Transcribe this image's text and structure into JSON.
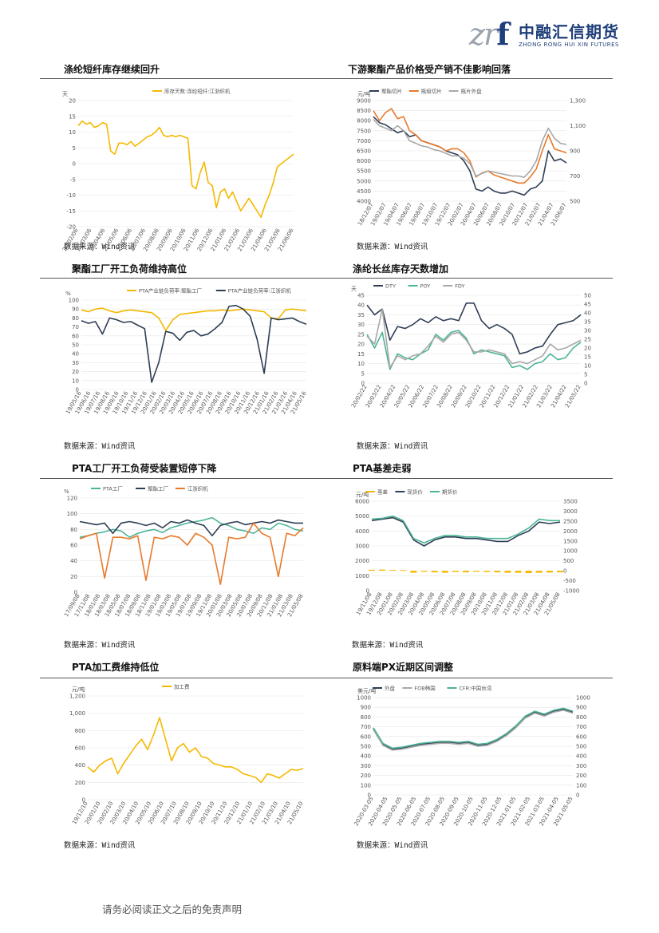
{
  "header": {
    "logo_mark": "zrf",
    "logo_cn": "中融汇信期货",
    "logo_en": "ZHONG RONG HUI XIN FUTURES"
  },
  "footer": "请务必阅读正文之后的免责声明",
  "source_label": "数据来源：Wind资讯",
  "colors": {
    "yellow": "#f5b800",
    "navy": "#2e3e55",
    "orange": "#e8792b",
    "gray": "#a8a8a8",
    "teal": "#4db397"
  },
  "sections": [
    {
      "title": "涤纶短纤库存继续回升",
      "source": "数据来源：Wind资讯"
    },
    {
      "title": "下游聚酯产品价格受产销不佳影响回落",
      "source": "数据来源：Wind资讯"
    },
    {
      "title": "聚酯工厂开工负荷维持高位",
      "source": "数据来源：Wind资讯"
    },
    {
      "title": "涤纶长丝库存天数增加",
      "source": "数据来源：Wind资讯"
    },
    {
      "title": "PTA工厂开工负荷受装置短停下降",
      "source": "数据来源：Wind资讯"
    },
    {
      "title": "PTA基差走弱",
      "source": "数据来源：Wind资讯"
    },
    {
      "title": "PTA加工费维持低位",
      "source": "数据来源：Wind资讯"
    },
    {
      "title": "原料端PX近期区间调整",
      "source": "数据来源：Wind资讯"
    }
  ],
  "chart_data": [
    {
      "type": "line",
      "unit": "天",
      "ylim": [
        -20,
        20
      ],
      "yticks": [
        20,
        15,
        10,
        5,
        0,
        -5,
        -10,
        -15,
        -20
      ],
      "xticks": [
        "20/02/06",
        "20/03/06",
        "20/04/06",
        "20/05/06",
        "20/06/06",
        "20/07/06",
        "20/08/06",
        "20/09/06",
        "20/10/06",
        "20/11/06",
        "20/12/06",
        "21/01/06",
        "21/02/06",
        "21/03/06",
        "21/04/06",
        "21/05/06",
        "21/06/06"
      ],
      "series": [
        {
          "name": "库存天数:涤纶短纤:江浙织机",
          "color": "#f5b800",
          "values": [
            12,
            13.5,
            12.5,
            13,
            11.5,
            12,
            13,
            12.5,
            4,
            3,
            6.5,
            6.5,
            6,
            7,
            5.5,
            6.5,
            7.5,
            8.5,
            9,
            10,
            11.5,
            9,
            8.5,
            9,
            8.5,
            9,
            8.5,
            8,
            -7,
            -8,
            -3,
            0.5,
            -6,
            -7,
            -14,
            -9,
            -8,
            -11,
            -9,
            -12,
            -15,
            -13,
            -11,
            -13,
            -15,
            -17,
            -13,
            -10,
            -6,
            -1,
            0,
            1,
            2,
            3
          ]
        }
      ]
    },
    {
      "type": "line",
      "unit": "元/吨",
      "ylim": [
        4000,
        9000
      ],
      "yticks": [
        9000,
        8500,
        8000,
        7500,
        7000,
        6500,
        6000,
        5500,
        5000,
        4500,
        4000
      ],
      "y2lim": [
        500,
        1300
      ],
      "y2ticks": [
        "1,300",
        "1,100",
        "900",
        "700",
        "500"
      ],
      "xticks": [
        "18/12/07",
        "19/02/07",
        "19/04/07",
        "19/06/07",
        "19/08/07",
        "19/10/07",
        "19/12/07",
        "20/02/07",
        "20/04/07",
        "20/06/07",
        "20/08/07",
        "20/10/07",
        "20/12/07",
        "21/02/07",
        "21/04/07",
        "21/06/07"
      ],
      "series": [
        {
          "name": "聚酯切片",
          "color": "#2e3e55",
          "values": [
            8200,
            7900,
            7800,
            7600,
            7400,
            7500,
            7200,
            7300,
            7000,
            6900,
            6800,
            6700,
            6500,
            6400,
            6300,
            6000,
            5500,
            4600,
            4500,
            4700,
            4500,
            4400,
            4400,
            4500,
            4400,
            4300,
            4600,
            4700,
            5000,
            6500,
            6000,
            6100,
            5900
          ]
        },
        {
          "name": "瓶级切片",
          "color": "#e8792b",
          "values": [
            8500,
            8000,
            8400,
            8600,
            8100,
            8200,
            7500,
            7300,
            7000,
            6900,
            6800,
            6700,
            6500,
            6600,
            6600,
            6400,
            6000,
            5200,
            5400,
            5500,
            5300,
            5200,
            5100,
            5000,
            4900,
            4900,
            5200,
            5600,
            6500,
            7300,
            6600,
            6500,
            6400
          ]
        },
        {
          "name": "瓶片外盘",
          "color": "#a8a8a8",
          "values": [
            1150,
            1100,
            1080,
            1060,
            1100,
            1060,
            980,
            960,
            940,
            930,
            910,
            900,
            880,
            860,
            860,
            840,
            800,
            700,
            720,
            740,
            730,
            720,
            710,
            700,
            700,
            690,
            740,
            820,
            980,
            1080,
            1000,
            960,
            950
          ],
          "axis": "y2"
        }
      ]
    },
    {
      "type": "line",
      "unit": "%",
      "ylim": [
        0,
        100
      ],
      "yticks": [
        100,
        90,
        80,
        70,
        60,
        50,
        40,
        30,
        20,
        10,
        0
      ],
      "xticks": [
        "19/05/16",
        "19/06/16",
        "19/07/16",
        "19/08/16",
        "19/09/16",
        "19/10/16",
        "19/11/16",
        "19/12/16",
        "20/01/16",
        "20/02/16",
        "20/03/16",
        "20/04/16",
        "20/05/16",
        "20/06/16",
        "20/07/16",
        "20/08/16",
        "20/09/16",
        "20/10/16",
        "20/11/16",
        "20/12/16",
        "21/01/16",
        "21/02/16",
        "21/03/16",
        "21/04/16",
        "21/05/16"
      ],
      "series": [
        {
          "name": "PTA产业链负荷率:聚酯工厂",
          "color": "#f5b800",
          "values": [
            89,
            87,
            90,
            91,
            88,
            86,
            88,
            89,
            88,
            87,
            86,
            80,
            66,
            78,
            84,
            85,
            86,
            87,
            88,
            88,
            89,
            88,
            89,
            90,
            89,
            88,
            87,
            80,
            79,
            89,
            90,
            89,
            88
          ]
        },
        {
          "name": "PTA产业链负荷率:江浙织机",
          "color": "#2e3e55",
          "values": [
            77,
            74,
            76,
            62,
            80,
            78,
            75,
            76,
            72,
            68,
            8,
            30,
            65,
            63,
            55,
            64,
            66,
            60,
            62,
            68,
            75,
            93,
            94,
            90,
            82,
            56,
            18,
            80,
            78,
            79,
            80,
            76,
            73
          ]
        }
      ]
    },
    {
      "type": "line",
      "unit": "天",
      "ylim": [
        0,
        45
      ],
      "yticks": [
        45,
        40,
        35,
        30,
        25,
        20,
        15,
        10,
        5,
        0
      ],
      "y2lim": [
        0,
        50
      ],
      "y2ticks": [
        50,
        45,
        40,
        35,
        30,
        25,
        20,
        15,
        10,
        5,
        0
      ],
      "xticks": [
        "20/02/22",
        "20/03/22",
        "20/04/22",
        "20/05/22",
        "20/06/22",
        "20/07/22",
        "20/08/22",
        "20/09/22",
        "20/10/22",
        "20/11/22",
        "20/12/22",
        "21/01/22",
        "21/02/22",
        "21/03/22",
        "21/04/22",
        "21/05/22"
      ],
      "series": [
        {
          "name": "DTY",
          "color": "#2e3e55",
          "values": [
            40,
            35,
            38,
            22,
            29,
            28,
            30,
            33,
            31,
            34,
            32,
            33,
            32,
            41,
            41,
            32,
            28,
            30,
            28,
            25,
            15,
            16,
            18,
            19,
            25,
            30,
            31,
            32,
            35
          ]
        },
        {
          "name": "POY",
          "color": "#4db397",
          "values": [
            25,
            18,
            26,
            7,
            15,
            13,
            12,
            15,
            17,
            25,
            22,
            26,
            27,
            23,
            15,
            17,
            16,
            15,
            14,
            8,
            9,
            7,
            10,
            11,
            15,
            12,
            13,
            18,
            21
          ]
        },
        {
          "name": "FDY",
          "color": "#a8a8a8",
          "values": [
            24,
            20,
            38,
            8,
            14,
            12,
            14,
            15,
            19,
            24,
            21,
            25,
            26,
            22,
            16,
            16,
            17,
            16,
            15,
            10,
            11,
            10,
            12,
            14,
            20,
            17,
            18,
            20,
            22
          ]
        }
      ]
    },
    {
      "type": "line",
      "unit": "%",
      "ylim": [
        0,
        120
      ],
      "yticks": [
        120,
        100,
        80,
        60,
        40,
        20,
        0
      ],
      "xticks": [
        "17/09/08",
        "17/11/08",
        "18/01/08",
        "18/03/08",
        "18/05/08",
        "18/07/08",
        "18/09/08",
        "18/11/08",
        "19/01/08",
        "19/03/08",
        "19/05/08",
        "19/07/08",
        "19/09/08",
        "19/11/08",
        "20/01/08",
        "20/03/08",
        "20/05/08",
        "20/07/08",
        "20/09/08",
        "20/11/08",
        "21/01/08",
        "21/03/08",
        "21/05/08"
      ],
      "series": [
        {
          "name": "PTA工厂",
          "color": "#4db397",
          "values": [
            70,
            72,
            75,
            77,
            80,
            78,
            70,
            75,
            78,
            80,
            76,
            82,
            85,
            88,
            90,
            92,
            95,
            88,
            85,
            80,
            78,
            75,
            82,
            80,
            88,
            85,
            80,
            78
          ]
        },
        {
          "name": "聚酯工厂",
          "color": "#2e3e55",
          "values": [
            90,
            88,
            86,
            88,
            75,
            88,
            90,
            88,
            85,
            88,
            82,
            90,
            88,
            92,
            88,
            85,
            72,
            85,
            88,
            90,
            86,
            88,
            90,
            88,
            92,
            90,
            88,
            88
          ]
        },
        {
          "name": "江浙织机",
          "color": "#e8792b",
          "values": [
            68,
            72,
            75,
            18,
            70,
            70,
            68,
            72,
            15,
            70,
            68,
            72,
            70,
            60,
            75,
            70,
            60,
            10,
            70,
            68,
            70,
            88,
            75,
            70,
            20,
            75,
            72,
            82
          ]
        }
      ]
    },
    {
      "type": "line",
      "unit": "元/吨",
      "ylim": [
        0,
        6000
      ],
      "yticks": [
        6000,
        5000,
        4000,
        3000,
        2000,
        1000,
        0
      ],
      "y2lim": [
        -1000,
        3500
      ],
      "y2ticks": [
        3500,
        3000,
        2500,
        2000,
        1500,
        1000,
        500,
        0,
        -500,
        -1000
      ],
      "xticks": [
        "19/11/08",
        "19/12/08",
        "20/01/08",
        "20/02/08",
        "20/03/08",
        "20/04/08",
        "20/05/08",
        "20/06/08",
        "20/07/08",
        "20/08/08",
        "20/09/08",
        "20/10/08",
        "20/11/08",
        "20/12/08",
        "21/01/08",
        "21/02/08",
        "21/03/08",
        "21/04/08",
        "21/05/08"
      ],
      "series": [
        {
          "name": "基差",
          "color": "#f5b800",
          "values": [
            50,
            60,
            40,
            30,
            -100,
            -50,
            -80,
            -100,
            -60,
            -80,
            -50,
            -60,
            -80,
            -100,
            -100,
            -120,
            -100,
            -90,
            -80
          ],
          "axis": "y2"
        },
        {
          "name": "现货价",
          "color": "#2e3e55",
          "values": [
            4700,
            4800,
            4900,
            4600,
            3400,
            3000,
            3400,
            3600,
            3600,
            3500,
            3500,
            3400,
            3300,
            3300,
            3700,
            4000,
            4600,
            4500,
            4600
          ]
        },
        {
          "name": "期货价",
          "color": "#4db397",
          "values": [
            4800,
            4850,
            5000,
            4700,
            3500,
            3200,
            3500,
            3700,
            3700,
            3600,
            3600,
            3500,
            3500,
            3500,
            3800,
            4200,
            4800,
            4700,
            4700
          ]
        }
      ]
    },
    {
      "type": "line",
      "unit": "元/吨",
      "ylim": [
        0,
        1200
      ],
      "yticks": [
        "1,200",
        "1,000",
        "800",
        "600",
        "400",
        "200",
        "0"
      ],
      "xticks": [
        "19/12/10",
        "20/01/10",
        "20/02/10",
        "20/03/10",
        "20/04/10",
        "20/05/10",
        "20/06/10",
        "20/07/10",
        "20/08/10",
        "20/09/10",
        "20/10/10",
        "20/11/10",
        "20/12/10",
        "21/01/10",
        "21/02/10",
        "21/03/10",
        "21/04/10",
        "21/05/10"
      ],
      "series": [
        {
          "name": "加工费",
          "color": "#f5b800",
          "values": [
            380,
            320,
            400,
            450,
            480,
            300,
            420,
            520,
            620,
            700,
            580,
            750,
            950,
            700,
            450,
            600,
            650,
            550,
            600,
            500,
            480,
            420,
            400,
            380,
            380,
            350,
            300,
            280,
            260,
            200,
            300,
            280,
            250,
            300,
            350,
            340,
            360
          ]
        }
      ]
    },
    {
      "type": "line",
      "unit": "美元/吨",
      "ylim": [
        0,
        1000
      ],
      "yticks": [
        1000,
        900,
        800,
        700,
        600,
        500,
        400,
        300,
        200,
        100,
        0
      ],
      "y2lim": [
        0,
        1000
      ],
      "y2ticks": [
        1000,
        900,
        800,
        700,
        600,
        500,
        400,
        300,
        200,
        100,
        0
      ],
      "xticks": [
        "2020-03-05",
        "2020-04-05",
        "2020-05-05",
        "2020-06-05",
        "2020-07-05",
        "2020-08-05",
        "2020-09-05",
        "2020-10-05",
        "2020-11-05",
        "2020-12-05",
        "2021-01-05",
        "2021-02-05",
        "2021-03-05",
        "2021-04-05",
        "2021-05-05"
      ],
      "series": [
        {
          "name": "外盘",
          "color": "#2e3e55",
          "values": [
            680,
            520,
            470,
            480,
            500,
            520,
            530,
            540,
            540,
            530,
            540,
            510,
            520,
            560,
            620,
            700,
            800,
            850,
            820,
            860,
            880,
            850
          ]
        },
        {
          "name": "FOB韩国",
          "color": "#a8a8a8",
          "values": [
            670,
            510,
            460,
            470,
            490,
            510,
            520,
            530,
            530,
            520,
            530,
            500,
            510,
            550,
            610,
            690,
            790,
            840,
            810,
            850,
            870,
            840
          ]
        },
        {
          "name": "CFR:中国台湾",
          "color": "#4db397",
          "values": [
            690,
            530,
            480,
            490,
            510,
            530,
            540,
            550,
            550,
            540,
            550,
            520,
            530,
            570,
            630,
            710,
            810,
            860,
            830,
            870,
            890,
            860
          ]
        }
      ]
    }
  ]
}
